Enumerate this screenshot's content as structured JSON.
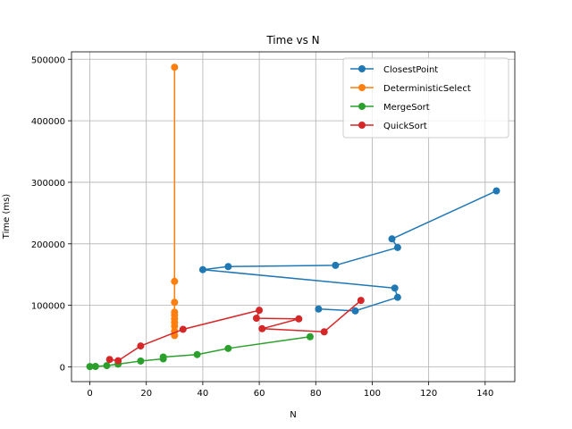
{
  "chart_data": {
    "type": "line",
    "title": "Time vs N",
    "xlabel": "N",
    "ylabel": "Time (ms)",
    "xlim": [
      -6.5,
      150.5
    ],
    "ylim": [
      -24000,
      512000
    ],
    "xticks": [
      0,
      20,
      40,
      60,
      80,
      100,
      120,
      140
    ],
    "yticks": [
      0,
      100000,
      200000,
      300000,
      400000,
      500000
    ],
    "grid": true,
    "legend_position": "top-right",
    "series": [
      {
        "name": "ClosestPoint",
        "color": "#1f77b4",
        "points": [
          [
            144,
            286000
          ],
          [
            107,
            208000
          ],
          [
            109,
            194000
          ],
          [
            87,
            165000
          ],
          [
            49,
            163000
          ],
          [
            40,
            158000
          ],
          [
            108,
            128000
          ],
          [
            109,
            113000
          ],
          [
            94,
            91000
          ],
          [
            81,
            94000
          ]
        ]
      },
      {
        "name": "DeterministicSelect",
        "color": "#ff7f0e",
        "points": [
          [
            30,
            487000
          ],
          [
            30,
            139000
          ],
          [
            30,
            105000
          ],
          [
            30,
            89000
          ],
          [
            30,
            84000
          ],
          [
            30,
            78000
          ],
          [
            30,
            72000
          ],
          [
            30,
            66000
          ],
          [
            30,
            58000
          ],
          [
            30,
            51000
          ]
        ]
      },
      {
        "name": "MergeSort",
        "color": "#2ca02c",
        "points": [
          [
            0,
            500
          ],
          [
            2,
            700
          ],
          [
            6,
            2000
          ],
          [
            10,
            4500
          ],
          [
            18,
            9500
          ],
          [
            26,
            13000
          ],
          [
            26,
            16000
          ],
          [
            38,
            20000
          ],
          [
            49,
            30000
          ],
          [
            78,
            49000
          ]
        ]
      },
      {
        "name": "QuickSort",
        "color": "#d62728",
        "points": [
          [
            7,
            12000
          ],
          [
            10,
            10000
          ],
          [
            18,
            34000
          ],
          [
            33,
            61000
          ],
          [
            60,
            92000
          ],
          [
            59,
            79000
          ],
          [
            74,
            78000
          ],
          [
            61,
            62000
          ],
          [
            83,
            57000
          ],
          [
            96,
            108000
          ]
        ]
      }
    ]
  }
}
